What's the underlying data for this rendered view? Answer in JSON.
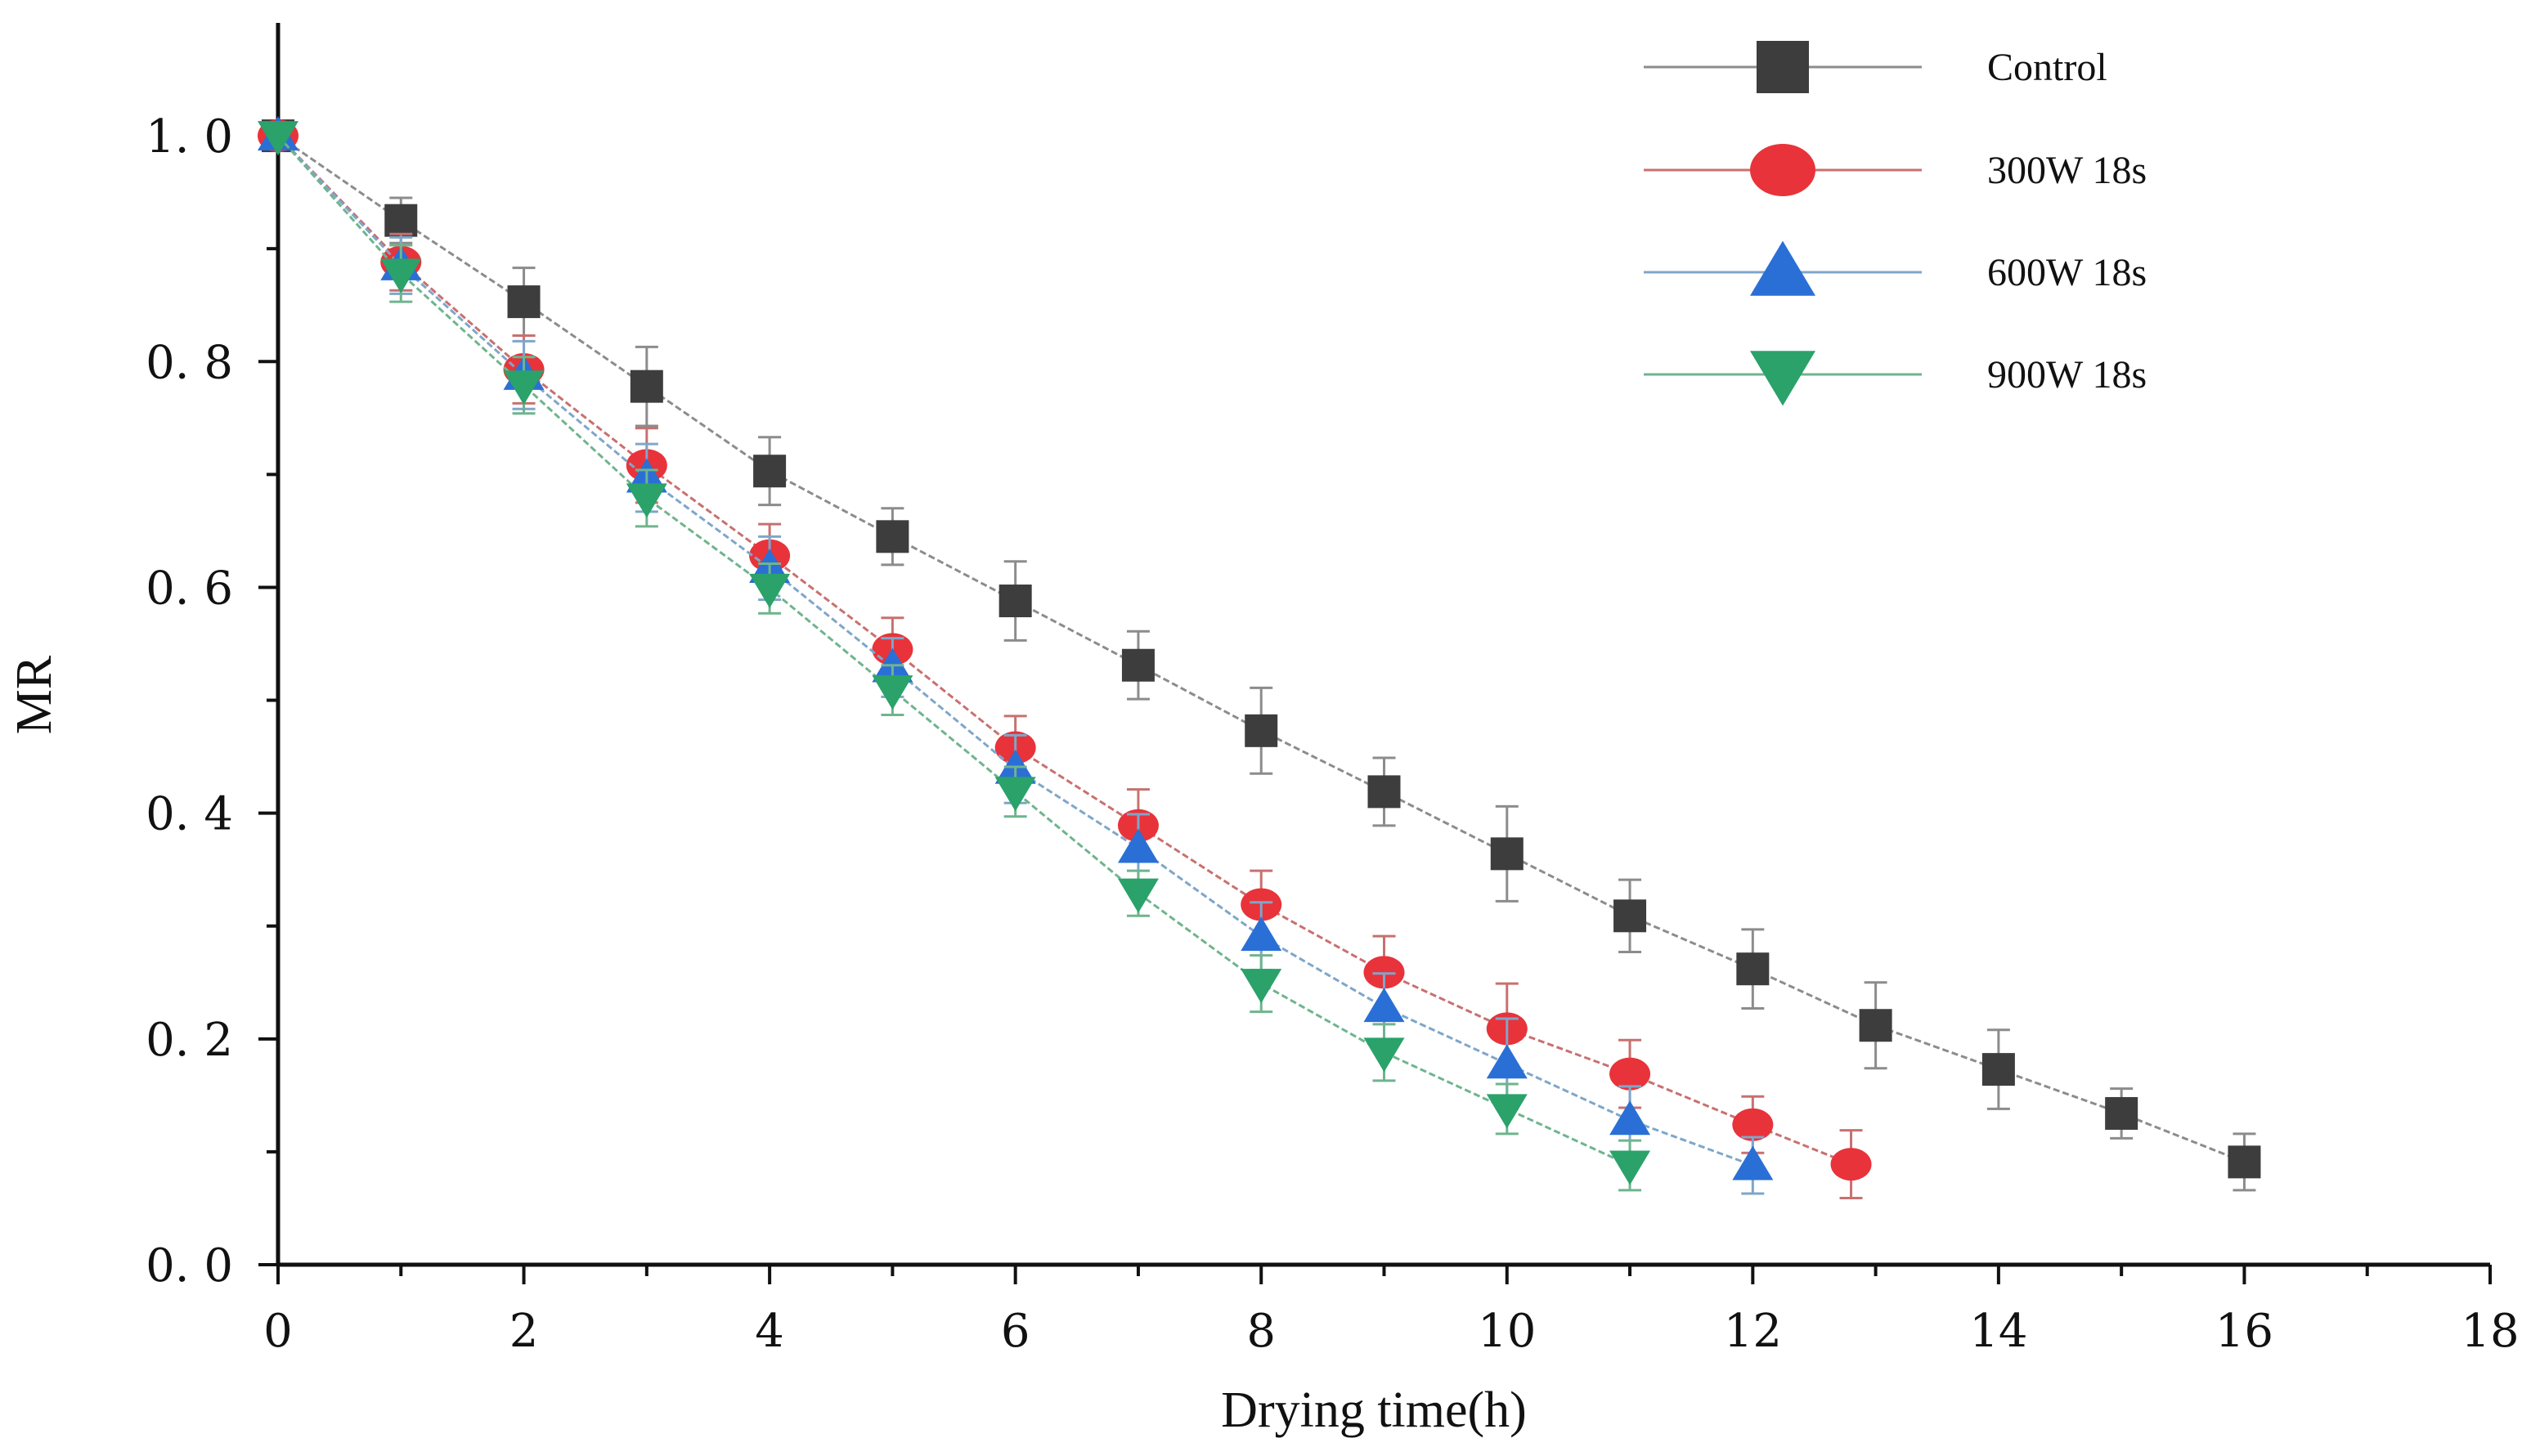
{
  "chart_data": {
    "type": "line",
    "title": "",
    "xlabel": "Drying time(h)",
    "ylabel": "MR",
    "xlim": [
      0,
      18
    ],
    "ylim": [
      0,
      1.1
    ],
    "xticks": [
      "0",
      "2",
      "4",
      "6",
      "8",
      "10",
      "12",
      "14",
      "16",
      "18"
    ],
    "yticks": [
      "0. 0",
      "0. 2",
      "0. 4",
      "0. 6",
      "0. 8",
      "1. 0"
    ],
    "legend_position": "top-right",
    "series": [
      {
        "name": "Control",
        "marker": "square",
        "color": "#3d3d3d",
        "line_color": "#8c8c8c",
        "x": [
          0,
          1,
          2,
          3,
          4,
          5,
          6,
          7,
          8,
          9,
          10,
          11,
          12,
          13,
          14,
          15,
          16
        ],
        "y": [
          1.0,
          0.925,
          0.853,
          0.778,
          0.703,
          0.645,
          0.588,
          0.531,
          0.473,
          0.419,
          0.364,
          0.309,
          0.262,
          0.212,
          0.173,
          0.134,
          0.091
        ],
        "err": [
          0.0,
          0.02,
          0.03,
          0.035,
          0.03,
          0.025,
          0.035,
          0.03,
          0.038,
          0.03,
          0.042,
          0.032,
          0.035,
          0.038,
          0.035,
          0.022,
          0.025
        ]
      },
      {
        "name": "300W 18s",
        "marker": "circle",
        "color": "#e8333a",
        "line_color": "#c87070",
        "x": [
          0,
          1,
          2,
          3,
          4,
          5,
          6,
          7,
          8,
          9,
          10,
          11,
          12,
          12.8
        ],
        "y": [
          1.0,
          0.888,
          0.793,
          0.708,
          0.628,
          0.545,
          0.458,
          0.389,
          0.319,
          0.259,
          0.209,
          0.169,
          0.124,
          0.089
        ],
        "err": [
          0.0,
          0.025,
          0.03,
          0.033,
          0.028,
          0.028,
          0.028,
          0.032,
          0.03,
          0.032,
          0.04,
          0.03,
          0.025,
          0.03
        ]
      },
      {
        "name": "600W 18s",
        "marker": "triangle-up",
        "color": "#2a6fd6",
        "line_color": "#7fa6c9",
        "x": [
          0,
          1,
          2,
          3,
          4,
          5,
          6,
          7,
          8,
          9,
          10,
          11,
          12
        ],
        "y": [
          1.0,
          0.885,
          0.788,
          0.697,
          0.617,
          0.529,
          0.439,
          0.369,
          0.291,
          0.228,
          0.178,
          0.128,
          0.088
        ],
        "err": [
          0.0,
          0.025,
          0.03,
          0.03,
          0.028,
          0.026,
          0.03,
          0.03,
          0.03,
          0.03,
          0.04,
          0.03,
          0.025
        ]
      },
      {
        "name": "900W 18s",
        "marker": "triangle-down",
        "color": "#2aa26a",
        "line_color": "#6fb48e",
        "x": [
          0,
          1,
          2,
          3,
          4,
          5,
          6,
          7,
          8,
          9,
          10,
          11
        ],
        "y": [
          1.0,
          0.878,
          0.779,
          0.679,
          0.599,
          0.509,
          0.419,
          0.329,
          0.249,
          0.188,
          0.138,
          0.088
        ],
        "err": [
          0.0,
          0.025,
          0.025,
          0.025,
          0.022,
          0.022,
          0.022,
          0.02,
          0.025,
          0.025,
          0.022,
          0.022
        ]
      }
    ]
  }
}
